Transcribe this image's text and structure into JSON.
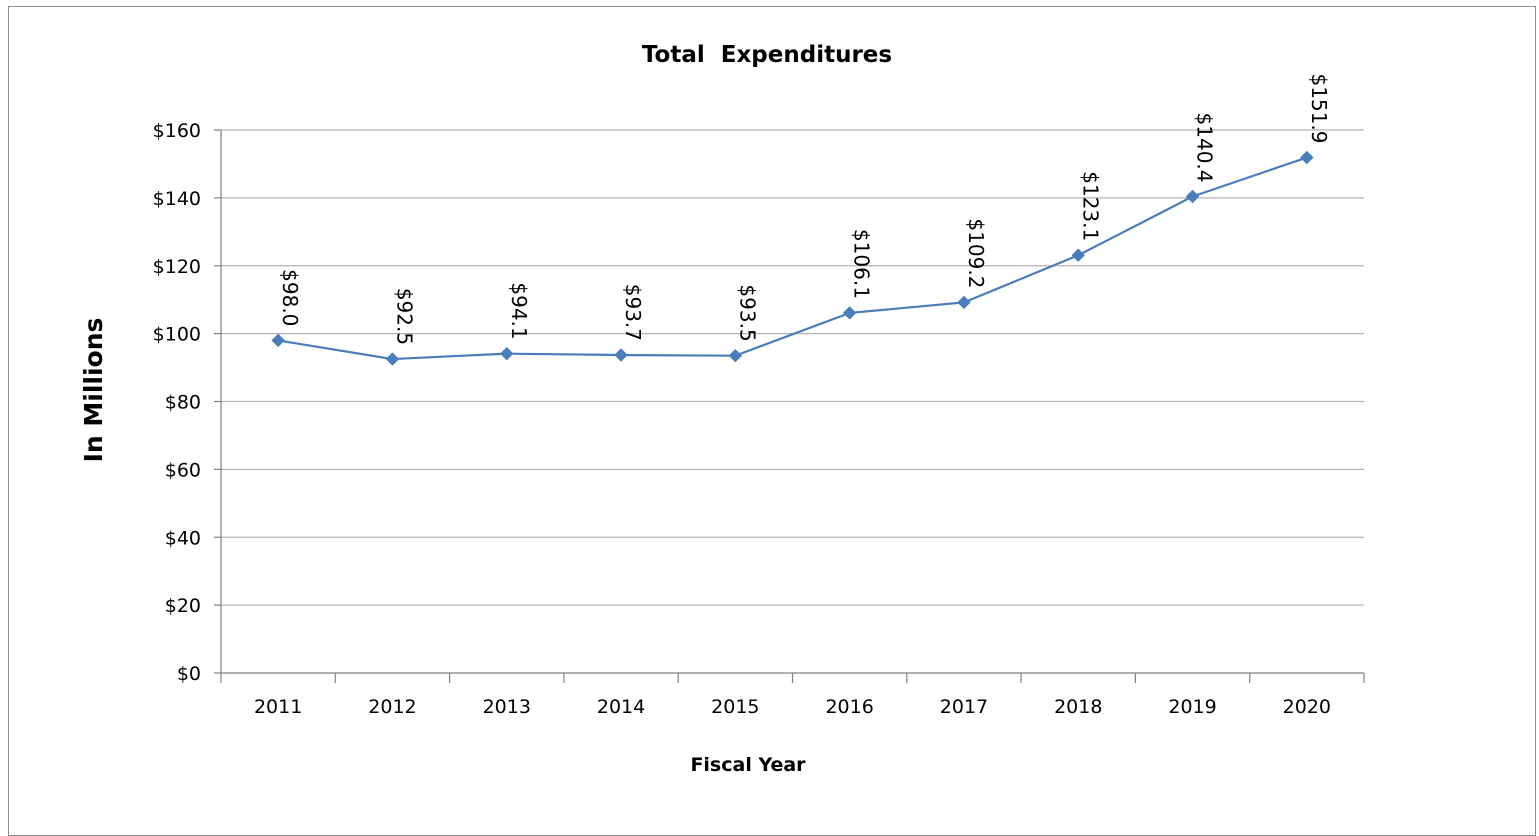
{
  "chart_data": {
    "type": "line",
    "title": "Total  Expenditures",
    "xlabel": "Fiscal Year",
    "ylabel": "In Millions",
    "categories": [
      "2011",
      "2012",
      "2013",
      "2014",
      "2015",
      "2016",
      "2017",
      "2018",
      "2019",
      "2020"
    ],
    "series": [
      {
        "values": [
          98.0,
          92.5,
          94.1,
          93.7,
          93.5,
          106.1,
          109.2,
          123.1,
          140.4,
          151.9
        ],
        "color": "#4a7ebb"
      }
    ],
    "data_labels": [
      "$98.0",
      "$92.5",
      "$94.1",
      "$93.7",
      "$93.5",
      "$106.1",
      "$109.2",
      "$123.1",
      "$140.4",
      "$151.9"
    ],
    "y_ticks": [
      0,
      20,
      40,
      60,
      80,
      100,
      120,
      140,
      160
    ],
    "y_tick_labels": [
      "$0",
      "$20",
      "$40",
      "$60",
      "$80",
      "$100",
      "$120",
      "$140",
      "$160"
    ],
    "ylim": [
      0,
      160
    ],
    "grid": true,
    "legend": "none",
    "marker": "diamond",
    "gridline_color": "#b3b3b3",
    "axis_color": "#808080"
  }
}
